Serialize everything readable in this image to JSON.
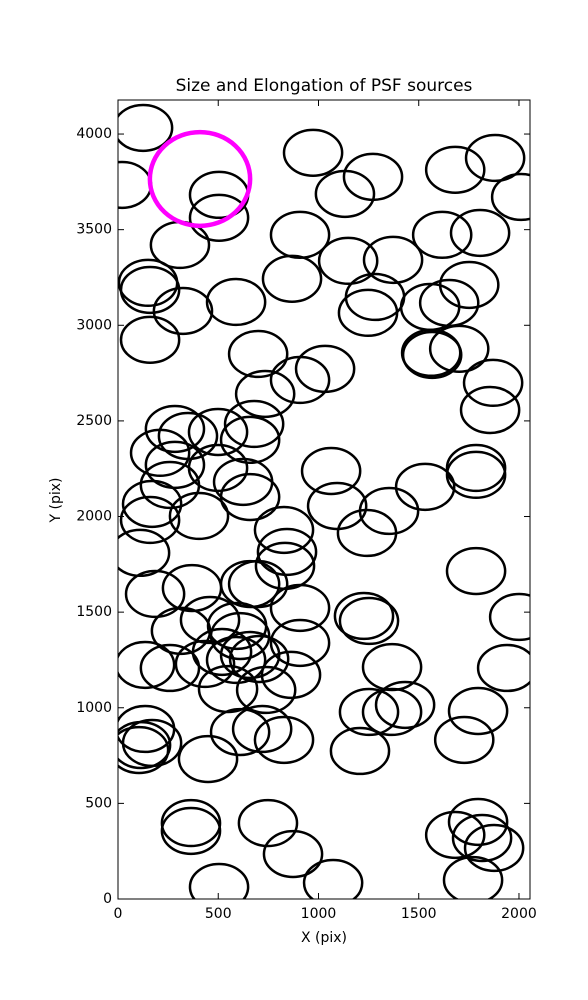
{
  "chart_data": {
    "type": "ellipse",
    "title": "Size and Elongation of PSF sources",
    "xlabel": "X (pix)",
    "ylabel": "Y (pix)",
    "xlim": [
      0,
      2055
    ],
    "ylim": [
      0,
      4178
    ],
    "xticks": [
      0,
      500,
      1000,
      1500,
      2000
    ],
    "yticks": [
      0,
      500,
      1000,
      1500,
      2000,
      2500,
      3000,
      3500,
      4000
    ],
    "series": [
      {
        "color": "#000000",
        "width": 290,
        "height": 240,
        "x": [
          125,
          20,
          504,
          504,
          973,
          1272,
          1132,
          1682,
          1881,
          2011,
          309,
          908,
          1148,
          1372,
          1617,
          1806,
          150,
          160,
          324,
          589,
          868,
          1282,
          1247,
          1557,
          1652,
          1752,
          160,
          699,
          1562,
          1567,
          1702,
          908,
          1033,
          734,
          1871,
          1856,
          284,
          499,
          349,
          679,
          659,
          210,
          284,
          499,
          624,
          1063,
          1786,
          1786,
          1532,
          259,
          170,
          659,
          1093,
          1352,
          404,
          160,
          828,
          1242,
          843,
          833,
          110,
          1786,
          369,
          659,
          699,
          185,
          908,
          459,
          314,
          594,
          609,
          1227,
          1252,
          2001,
          908,
          519,
          659,
          704,
          135,
          259,
          434,
          589,
          1367,
          1941,
          863,
          549,
          739,
          1252,
          1367,
          1432,
          1796,
          135,
          115,
          105,
          170,
          609,
          719,
          828,
          1207,
          1727,
          449,
          364,
          364,
          748,
          873,
          1682,
          1796,
          1816,
          1876,
          1771,
          504,
          1073
        ],
        "y": [
          4032,
          3734,
          3682,
          3562,
          3902,
          3776,
          3687,
          3813,
          3875,
          3671,
          3420,
          3473,
          3337,
          3342,
          3473,
          3483,
          3222,
          3185,
          3075,
          3122,
          3243,
          3148,
          3065,
          3096,
          3117,
          3211,
          2924,
          2850,
          2856,
          2845,
          2877,
          2714,
          2772,
          2641,
          2699,
          2557,
          2458,
          2442,
          2421,
          2484,
          2401,
          2333,
          2270,
          2254,
          2181,
          2238,
          2254,
          2218,
          2155,
          2165,
          2066,
          2102,
          2055,
          2029,
          2003,
          1982,
          1930,
          1914,
          1815,
          1742,
          1810,
          1715,
          1626,
          1647,
          1647,
          1595,
          1522,
          1459,
          1402,
          1428,
          1375,
          1480,
          1454,
          1475,
          1339,
          1292,
          1276,
          1255,
          1224,
          1208,
          1229,
          1250,
          1213,
          1208,
          1172,
          1098,
          1093,
          978,
          978,
          1015,
          983,
          889,
          805,
          779,
          816,
          873,
          889,
          832,
          774,
          832,
          732,
          397,
          356,
          397,
          235,
          335,
          403,
          319,
          267,
          99,
          63,
          84
        ]
      },
      {
        "color": "#ff00ff",
        "width": 500,
        "height": 490,
        "x": [
          409
        ],
        "y": [
          3765
        ]
      }
    ]
  }
}
